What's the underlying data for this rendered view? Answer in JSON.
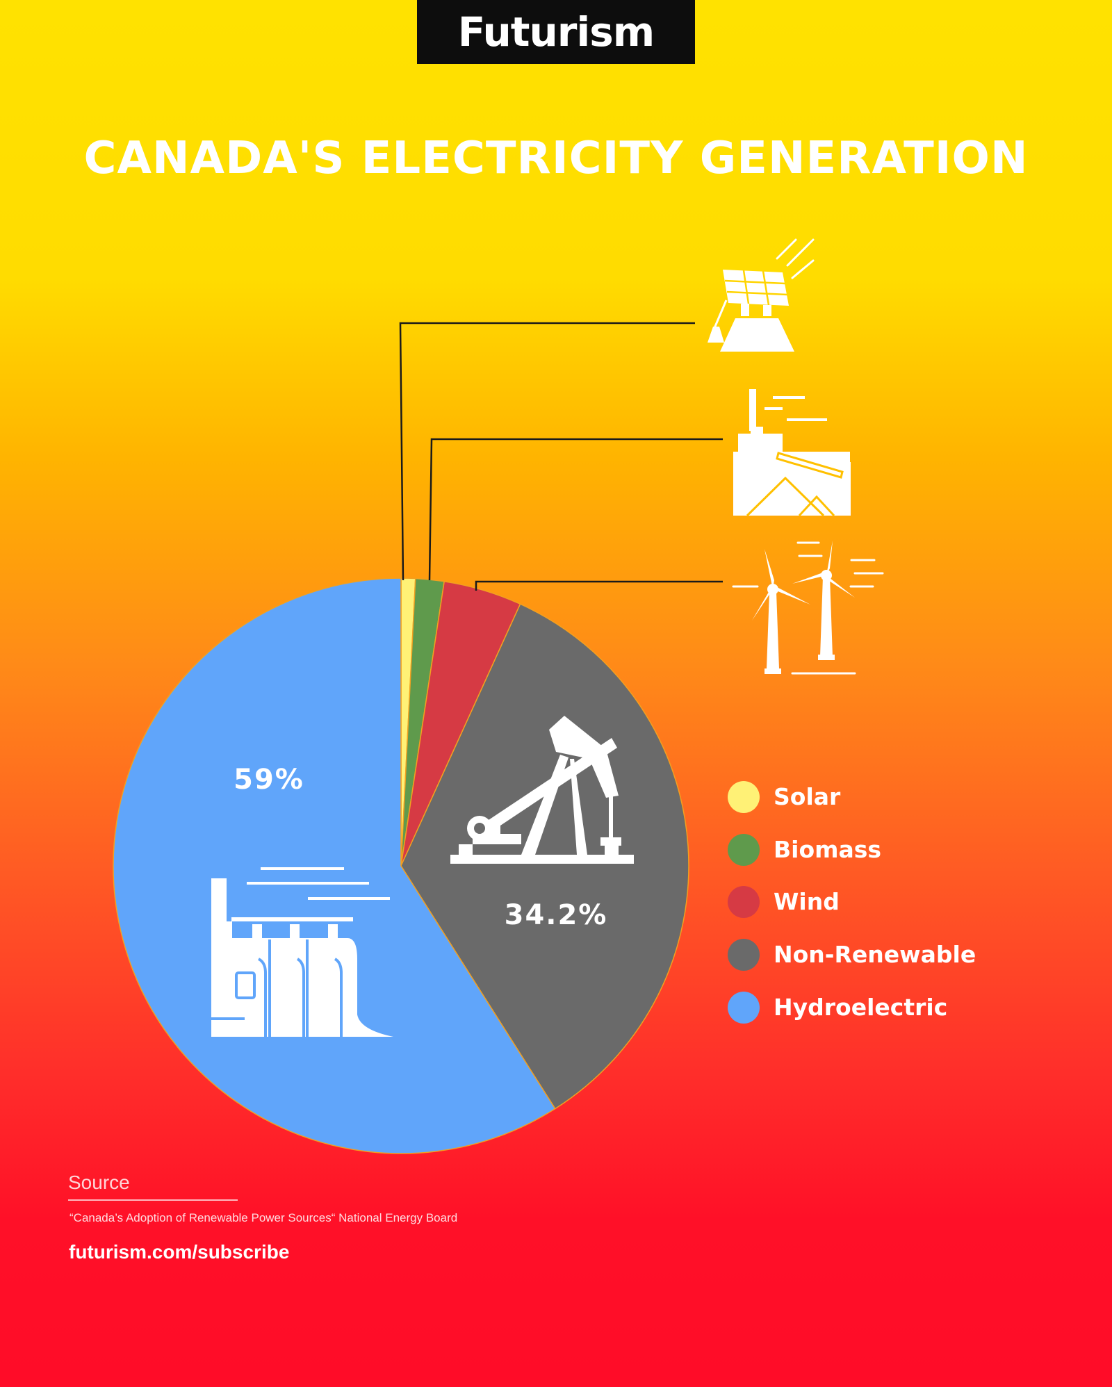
{
  "header": {
    "logo_text": "Futurism"
  },
  "chart_data": {
    "type": "pie",
    "title": "CANADA'S ELECTRICITY GENERATION",
    "categories": [
      "Solar",
      "Biomass",
      "Wind",
      "Non-Renewable",
      "Hydroelectric"
    ],
    "values": [
      0.8,
      1.6,
      4.4,
      34.2,
      59
    ],
    "colors": [
      "#fff176",
      "#5f9a4c",
      "#d63a44",
      "#6a6a6a",
      "#60a5fa"
    ],
    "slice_labels": [
      {
        "category": "Non-Renewable",
        "text": "34.2%"
      },
      {
        "category": "Hydroelectric",
        "text": "59%"
      }
    ],
    "slice_icons": [
      {
        "category": "Solar",
        "icon": "solar-panel-icon"
      },
      {
        "category": "Biomass",
        "icon": "biomass-plant-icon"
      },
      {
        "category": "Wind",
        "icon": "wind-turbine-icon"
      },
      {
        "category": "Non-Renewable",
        "icon": "oil-pump-icon"
      },
      {
        "category": "Hydroelectric",
        "icon": "hydro-dam-icon"
      }
    ],
    "legend": {
      "position": "right",
      "entries": [
        "Solar",
        "Biomass",
        "Wind",
        "Non-Renewable",
        "Hydroelectric"
      ]
    }
  },
  "footer": {
    "source_heading": "Source",
    "source_text": "“Canada’s Adoption of Renewable Power Sources“ National Energy Board",
    "subscribe": "futurism.com/subscribe"
  }
}
